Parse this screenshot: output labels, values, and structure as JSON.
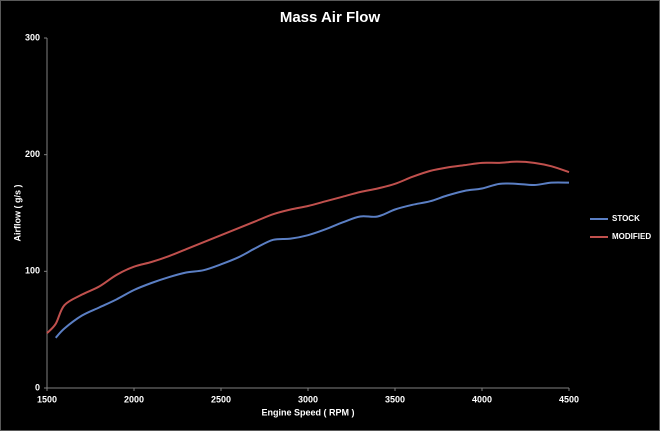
{
  "chart_data": {
    "type": "line",
    "title": "Mass Air Flow",
    "x_label": "Engine Speed ( RPM )",
    "y_label": "Airflow ( g/s )",
    "x": [
      1500,
      1550,
      1600,
      1700,
      1800,
      1900,
      2000,
      2100,
      2200,
      2300,
      2400,
      2500,
      2600,
      2700,
      2800,
      2900,
      3000,
      3100,
      3200,
      3300,
      3400,
      3500,
      3600,
      3700,
      3800,
      3900,
      4000,
      4100,
      4200,
      4300,
      4400,
      4500
    ],
    "series": [
      {
        "name": "STOCK",
        "color": "#5b7fc4",
        "values": [
          null,
          43,
          51,
          62,
          69,
          76,
          84,
          90,
          95,
          99,
          101,
          106,
          112,
          120,
          127,
          128,
          131,
          136,
          142,
          147,
          147,
          153,
          157,
          160,
          165,
          169,
          171,
          175,
          175,
          174,
          176,
          176
        ]
      },
      {
        "name": "MODIFIED",
        "color": "#c0504d",
        "values": [
          47,
          55,
          71,
          80,
          87,
          97,
          104,
          108,
          113,
          119,
          125,
          131,
          137,
          143,
          149,
          153,
          156,
          160,
          164,
          168,
          171,
          175,
          181,
          186,
          189,
          191,
          193,
          193,
          194,
          193,
          190,
          185
        ]
      }
    ],
    "xlim": [
      1500,
      4500
    ],
    "xticks": [
      1500,
      2000,
      2500,
      3000,
      3500,
      4000,
      4500
    ],
    "ylim": [
      0,
      300
    ],
    "yticks": [
      0,
      100,
      200,
      300
    ],
    "grid": false,
    "legend": "right"
  }
}
